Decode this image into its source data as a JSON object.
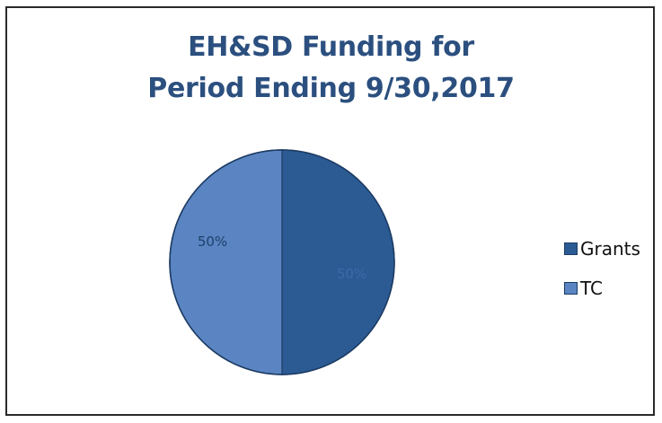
{
  "chart_data": {
    "type": "pie",
    "title": "EH&SD Funding for Period Ending 9/30,2017",
    "title_lines": [
      "EH&SD Funding for",
      "Period Ending 9/30,2017"
    ],
    "categories": [
      "Grants",
      "TC"
    ],
    "values": [
      50,
      50
    ],
    "data_labels": [
      "50%",
      "50%"
    ],
    "colors": [
      "#2c5b94",
      "#5a85c2"
    ],
    "legend_position": "right"
  }
}
